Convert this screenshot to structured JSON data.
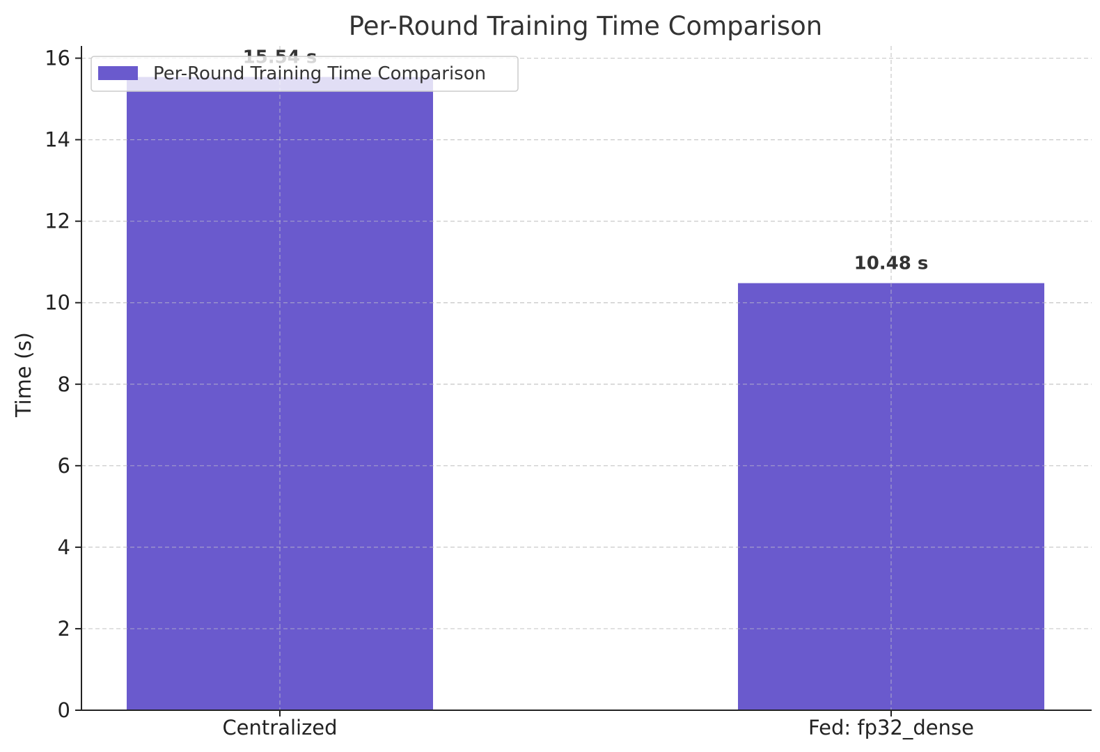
{
  "chart_data": {
    "type": "bar",
    "title": "Per-Round Training Time Comparison",
    "xlabel": "",
    "ylabel": "Time (s)",
    "categories": [
      "Centralized",
      "Fed: fp32_dense"
    ],
    "series": [
      {
        "name": "Per-Round Training Time Comparison",
        "values": [
          15.54,
          10.48
        ],
        "color": "#6a5acd"
      }
    ],
    "data_labels": [
      "15.54 s",
      "10.48 s"
    ],
    "ylim": [
      0,
      16.3
    ],
    "yticks": [
      0,
      2,
      4,
      6,
      8,
      10,
      12,
      14,
      16
    ],
    "grid": true,
    "legend_position": "top-left"
  }
}
